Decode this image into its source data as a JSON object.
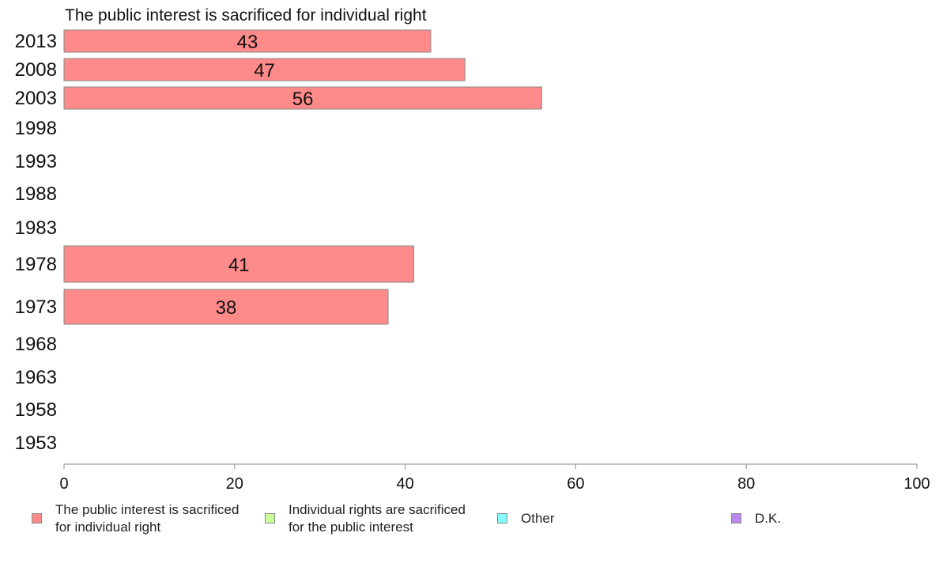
{
  "chart_data": {
    "type": "bar",
    "orientation": "horizontal",
    "title": "The public interest is sacrificed for individual right",
    "categories": [
      "2013",
      "2008",
      "2003",
      "1998",
      "1993",
      "1988",
      "1983",
      "1978",
      "1973",
      "1968",
      "1963",
      "1958",
      "1953"
    ],
    "series": [
      {
        "name": "The public interest is sacrificed for individual right",
        "color": "#ff8a8a",
        "values": [
          43,
          47,
          56,
          null,
          null,
          null,
          null,
          41,
          38,
          null,
          null,
          null,
          null
        ]
      }
    ],
    "xlim": [
      0,
      100
    ],
    "xticks": [
      0,
      20,
      40,
      60,
      80,
      100
    ],
    "legend_position": "bottom",
    "grid": false
  },
  "legend": [
    {
      "label": "The public interest is sacrificed\nfor individual right",
      "color": "#ff8a8a"
    },
    {
      "label": "Individual rights are sacrificed\nfor the public interest",
      "color": "#ccff99"
    },
    {
      "label": "Other",
      "color": "#88ffff"
    },
    {
      "label": "D.K.",
      "color": "#bb88ee"
    }
  ]
}
